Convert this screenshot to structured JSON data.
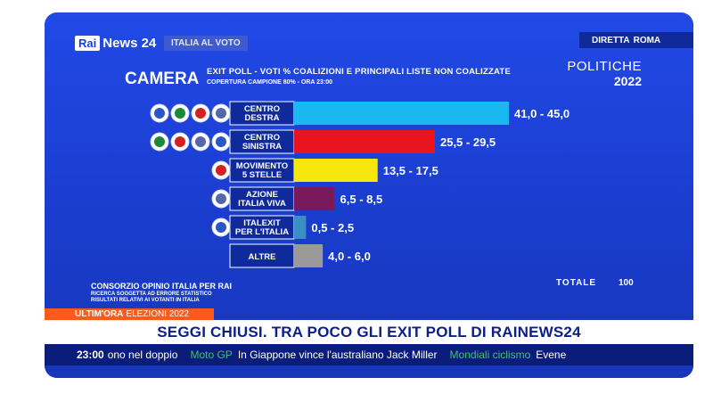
{
  "header": {
    "logo_rai": "Rai",
    "logo_news": "News 24",
    "tag": "ITALIA AL VOTO",
    "diretta_label": "DIRETTA",
    "diretta_city": "ROMA"
  },
  "chart_title": {
    "chamber": "CAMERA",
    "title": "EXIT POLL - VOTI % COALIZIONI E PRINCIPALI LISTE NON COALIZZATE",
    "subtitle": "COPERTURA CAMPIONE 80% - ORA 23:00",
    "politiche": "POLITICHE",
    "year": "2022"
  },
  "chart_data": {
    "type": "bar",
    "orientation": "horizontal",
    "categories": [
      "CENTRO\nDESTRA",
      "CENTRO\nSINISTRA",
      "MOVIMENTO\n5 STELLE",
      "AZIONE\nITALIA VIVA",
      "ITALEXIT\nPER L'ITALIA",
      "ALTRE"
    ],
    "ranges": [
      [
        41.0,
        45.0
      ],
      [
        25.5,
        29.5
      ],
      [
        13.5,
        17.5
      ],
      [
        6.5,
        8.5
      ],
      [
        0.5,
        2.5
      ],
      [
        4.0,
        6.0
      ]
    ],
    "labels": [
      "41,0 - 45,0",
      "25,5 - 29,5",
      "13,5 - 17,5",
      "6,5 - 8,5",
      "0,5 - 2,5",
      "4,0 - 6,0"
    ],
    "colors": [
      "#19b8f0",
      "#e8141e",
      "#f6e80c",
      "#7a1a5c",
      "#3a8ec4",
      "#9a9a9a"
    ],
    "logo_counts": [
      4,
      4,
      1,
      1,
      1,
      0
    ],
    "xlim": [
      0,
      45
    ]
  },
  "footer": {
    "source": "CONSORZIO OPINIO ITALIA PER RAI",
    "note1": "RICERCA SOGGETTA AD ERRORE STATISTICO",
    "note2": "RISULTATI RELATIVI AI VOTANTI IN ITALIA",
    "totale_label": "TOTALE",
    "totale_value": "100"
  },
  "ultim_ora": {
    "label": "ULTIM'ORA",
    "topic": "ELEZIONI 2022"
  },
  "headline": "SEGGI CHIUSI. TRA POCO GLI EXIT POLL DI RAINEWS24",
  "ticker": {
    "time": "23:00",
    "text1": "ono nel doppio",
    "section1": "Moto GP",
    "text2": "In Giappone vince l'australiano Jack Miller",
    "section2": "Mondiali ciclismo",
    "text3": "Evene"
  }
}
